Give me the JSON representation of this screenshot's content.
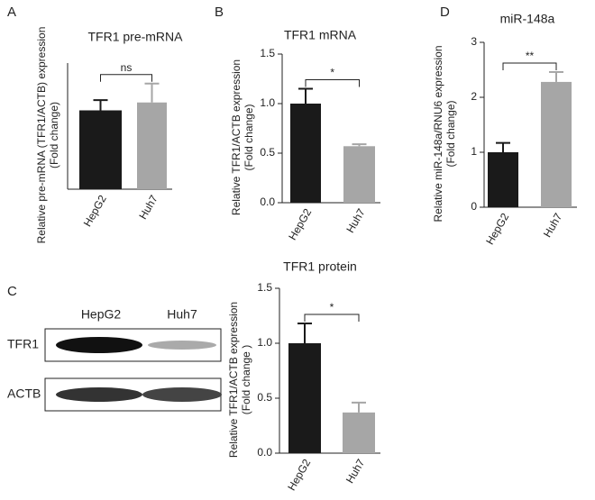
{
  "chart_data": [
    {
      "type": "bar",
      "panel": "A",
      "title": "TFR1 pre-mRNA",
      "ylabel": [
        "Relative pre-mRNA (TFR1/ACTB) expression",
        "(Fold change)"
      ],
      "categories": [
        "HepG2",
        "Huh7"
      ],
      "values": [
        1.0,
        1.1
      ],
      "errors": [
        0.13,
        0.24
      ],
      "colors": [
        "#1a1a1a",
        "#a6a6a6"
      ],
      "ylim": [
        0,
        1.6
      ],
      "annotation": "ns"
    },
    {
      "type": "bar",
      "panel": "B",
      "title": "TFR1 mRNA",
      "ylabel": [
        "Relative TFR1/ACTB expression",
        "(Fold change)"
      ],
      "categories": [
        "HepG2",
        "Huh7"
      ],
      "values": [
        1.0,
        0.57
      ],
      "errors": [
        0.15,
        0.02
      ],
      "colors": [
        "#1a1a1a",
        "#a6a6a6"
      ],
      "ylim": [
        0,
        1.5
      ],
      "yticks": [
        {
          "value": 0,
          "label": "0.0"
        },
        {
          "value": 0.5,
          "label": "0.5"
        },
        {
          "value": 1,
          "label": "1.0"
        },
        {
          "value": 1.5,
          "label": "1.5"
        }
      ],
      "annotation": "*"
    },
    {
      "type": "bar",
      "panel": "D",
      "title": "miR-148a",
      "ylabel": [
        "Relative miR-148a/RNU6 expression",
        "(Fold change)"
      ],
      "categories": [
        "HepG2",
        "Huh7"
      ],
      "values": [
        1.0,
        2.28
      ],
      "errors": [
        0.17,
        0.18
      ],
      "colors": [
        "#1a1a1a",
        "#a6a6a6"
      ],
      "ylim": [
        0,
        3
      ],
      "yticks": [
        0,
        1,
        2,
        3
      ],
      "annotation": "**"
    },
    {
      "type": "bar",
      "title": "TFR1 protein",
      "ylabel": [
        "Relative TFR1/ACTB expression",
        "(Fold change )"
      ],
      "categories": [
        "HepG2",
        "Huh7"
      ],
      "values": [
        1.0,
        0.37
      ],
      "errors": [
        0.18,
        0.09
      ],
      "colors": [
        "#1a1a1a",
        "#a6a6a6"
      ],
      "ylim": [
        0,
        1.5
      ],
      "yticks": [
        {
          "value": 0,
          "label": "0.0"
        },
        {
          "value": 0.5,
          "label": "0.5"
        },
        {
          "value": 1,
          "label": "1.0"
        },
        {
          "value": 1.5,
          "label": "1.5"
        }
      ],
      "annotation": "*"
    }
  ],
  "blot": {
    "panel": "C",
    "lanes": [
      "HepG2",
      "Huh7"
    ],
    "rows": [
      "TFR1",
      "ACTB"
    ]
  }
}
